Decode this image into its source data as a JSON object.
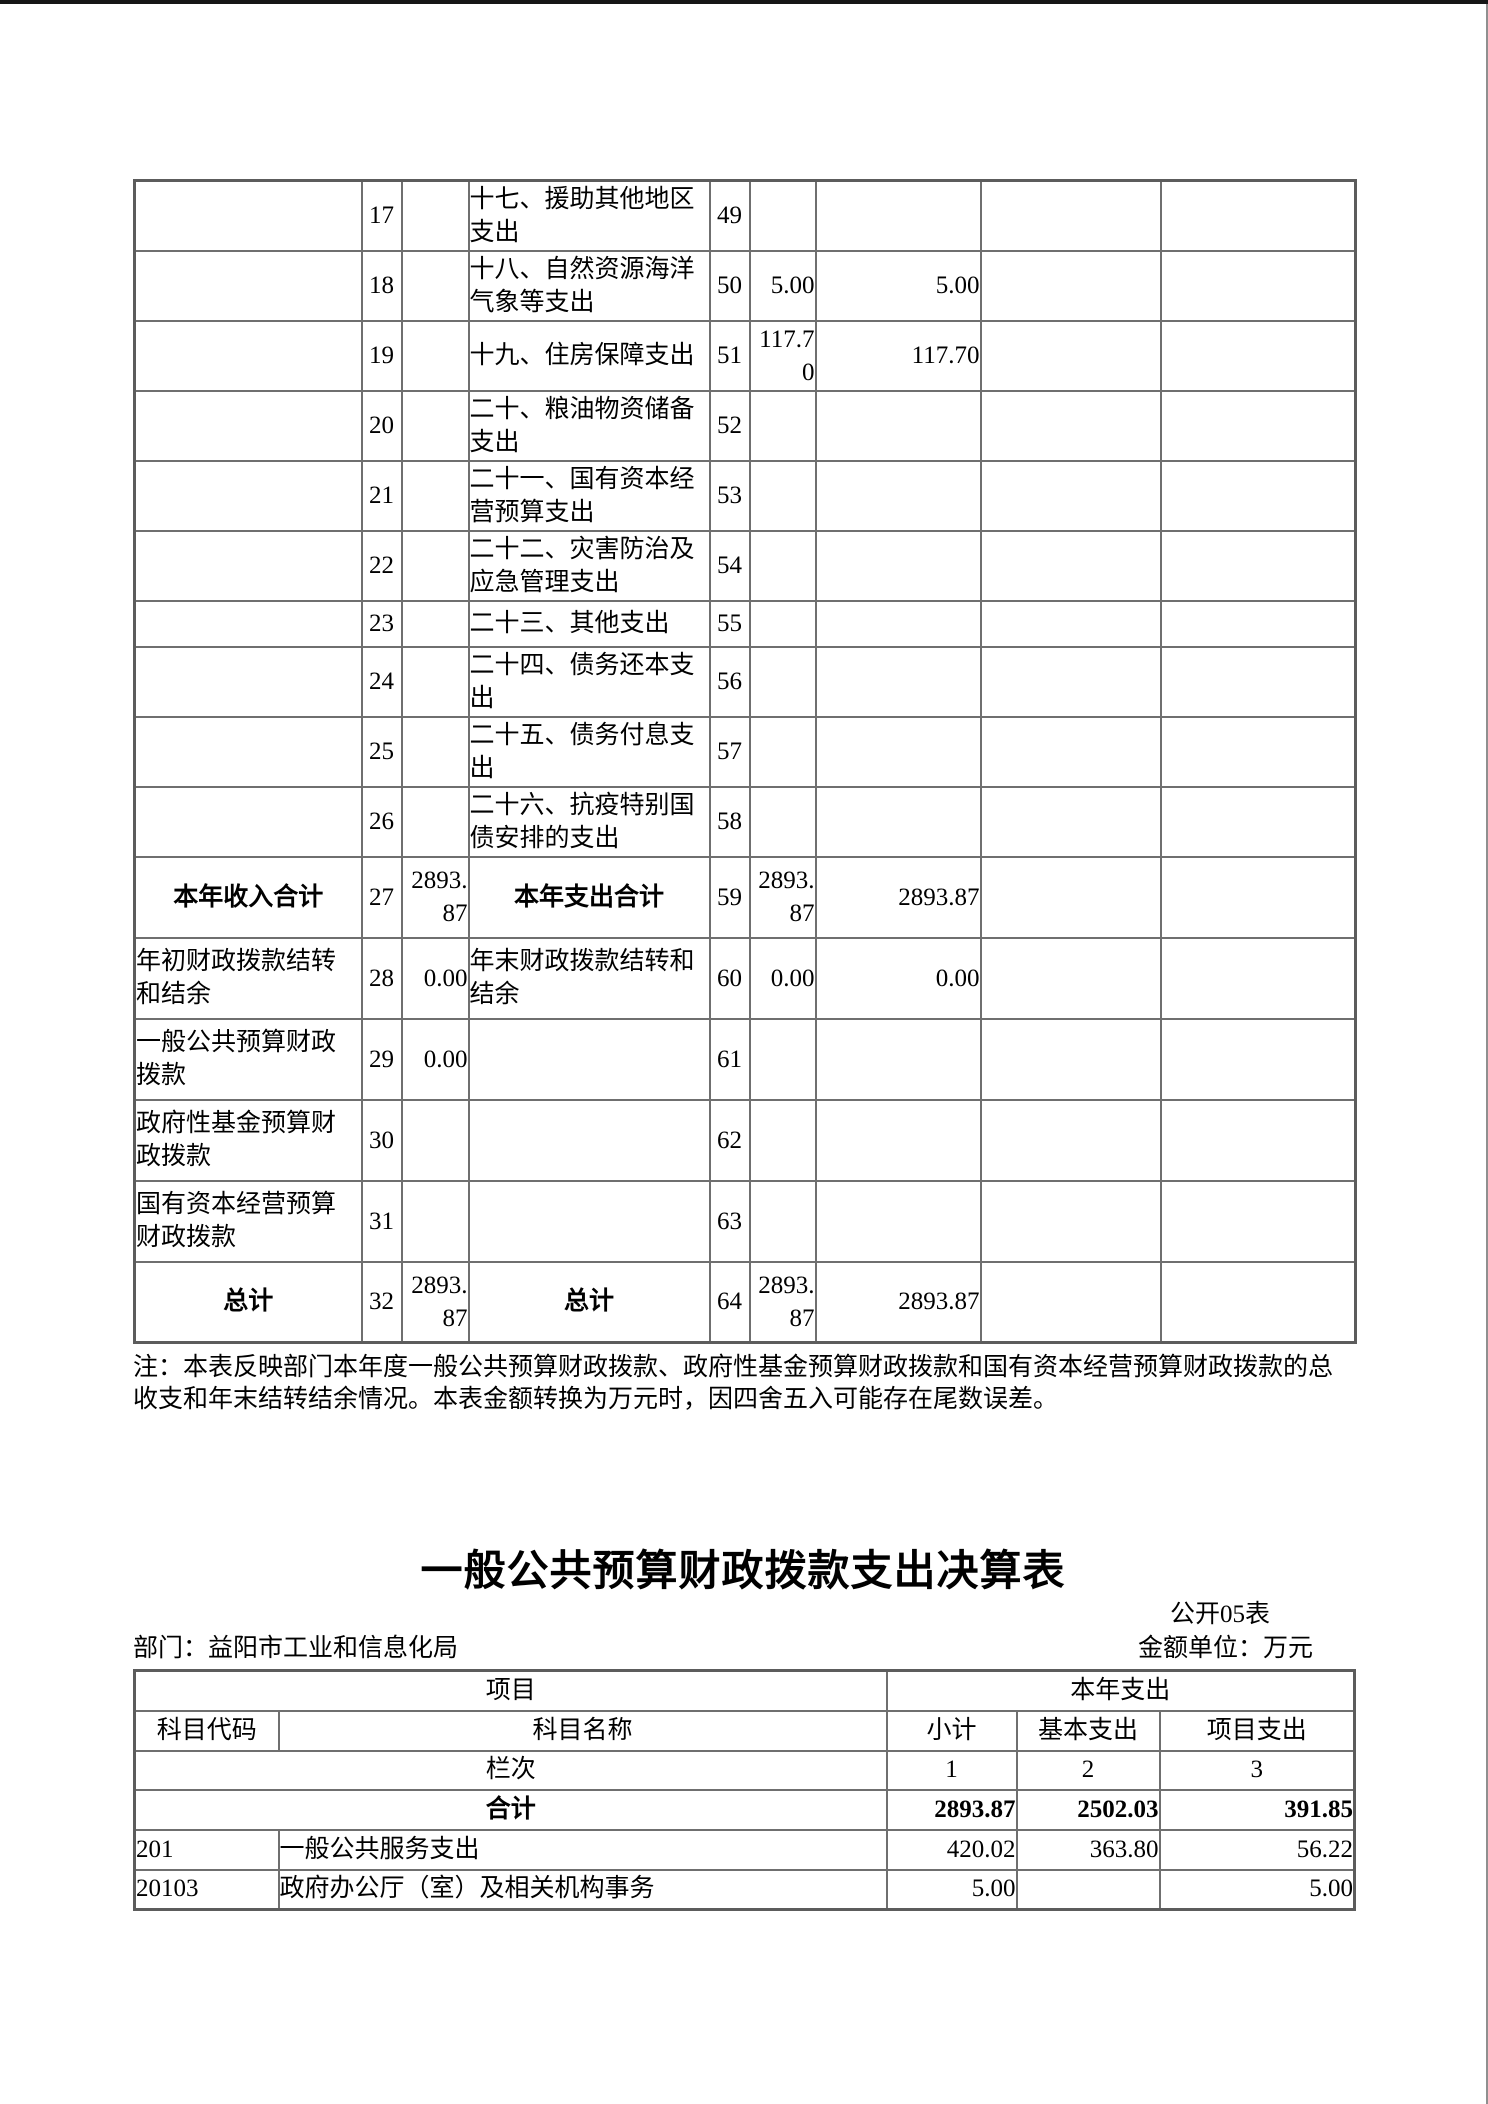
{
  "title": "一般公共预算财政拨款支出决算表",
  "note": "注：本表反映部门本年度一般公共预算财政拨款、政府性基金预算财政拨款和国有资本经营预算财政拨款的总收支和年末结转结余情况。本表金额转换为万元时，因四舍五入可能存在尾数误差。",
  "meta": {
    "table_no": "公开05表",
    "department": "部门：益阳市工业和信息化局",
    "unit": "金额单位：万元"
  },
  "table1": {
    "rows": [
      {
        "c": [
          "",
          "17",
          "",
          "十七、援助其他地区支出",
          "49",
          "",
          "",
          "",
          ""
        ]
      },
      {
        "c": [
          "",
          "18",
          "",
          "十八、自然资源海洋气象等支出",
          "50",
          "5.00",
          "5.00",
          "",
          ""
        ]
      },
      {
        "c": [
          "",
          "19",
          "",
          "十九、住房保障支出",
          "51",
          "117.70",
          "117.70",
          "",
          ""
        ]
      },
      {
        "c": [
          "",
          "20",
          "",
          "二十、粮油物资储备支出",
          "52",
          "",
          "",
          "",
          ""
        ]
      },
      {
        "c": [
          "",
          "21",
          "",
          "二十一、国有资本经营预算支出",
          "53",
          "",
          "",
          "",
          ""
        ]
      },
      {
        "c": [
          "",
          "22",
          "",
          "二十二、灾害防治及应急管理支出",
          "54",
          "",
          "",
          "",
          ""
        ]
      },
      {
        "c": [
          "",
          "23",
          "",
          "二十三、其他支出",
          "55",
          "",
          "",
          "",
          ""
        ]
      },
      {
        "c": [
          "",
          "24",
          "",
          "二十四、债务还本支出",
          "56",
          "",
          "",
          "",
          ""
        ]
      },
      {
        "c": [
          "",
          "25",
          "",
          "二十五、债务付息支出",
          "57",
          "",
          "",
          "",
          ""
        ]
      },
      {
        "c": [
          "",
          "26",
          "",
          "二十六、抗疫特别国债安排的支出",
          "58",
          "",
          "",
          "",
          ""
        ]
      },
      {
        "c": [
          "本年收入合计",
          "27",
          "2893.87",
          "本年支出合计",
          "59",
          "2893.87",
          "2893.87",
          "",
          ""
        ],
        "bold": true
      },
      {
        "c": [
          "年初财政拨款结转和结余",
          "28",
          "0.00",
          "年末财政拨款结转和结余",
          "60",
          "0.00",
          "0.00",
          "",
          ""
        ]
      },
      {
        "c": [
          "一般公共预算财政拨款",
          "29",
          "0.00",
          "",
          "61",
          "",
          "",
          "",
          ""
        ]
      },
      {
        "c": [
          "政府性基金预算财政拨款",
          "30",
          "",
          "",
          "62",
          "",
          "",
          "",
          ""
        ]
      },
      {
        "c": [
          "国有资本经营预算财政拨款",
          "31",
          "",
          "",
          "63",
          "",
          "",
          "",
          ""
        ]
      },
      {
        "c": [
          "总计",
          "32",
          "2893.87",
          "总计",
          "64",
          "2893.87",
          "2893.87",
          "",
          ""
        ],
        "bold": true
      }
    ]
  },
  "table2": {
    "header_row1": [
      "项目",
      "本年支出"
    ],
    "header_row2": [
      "科目代码",
      "科目名称",
      "小计",
      "基本支出",
      "项目支出"
    ],
    "lanci_row": [
      "栏次",
      "1",
      "2",
      "3"
    ],
    "total_row": {
      "label": "合计",
      "values": [
        "2893.87",
        "2502.03",
        "391.85"
      ]
    },
    "data_rows": [
      {
        "code": "201",
        "name": "一般公共服务支出",
        "values": [
          "420.02",
          "363.80",
          "56.22"
        ]
      },
      {
        "code": "20103",
        "name": "政府办公厅（室）及相关机构事务",
        "values": [
          "5.00",
          "",
          "5.00"
        ]
      }
    ]
  }
}
